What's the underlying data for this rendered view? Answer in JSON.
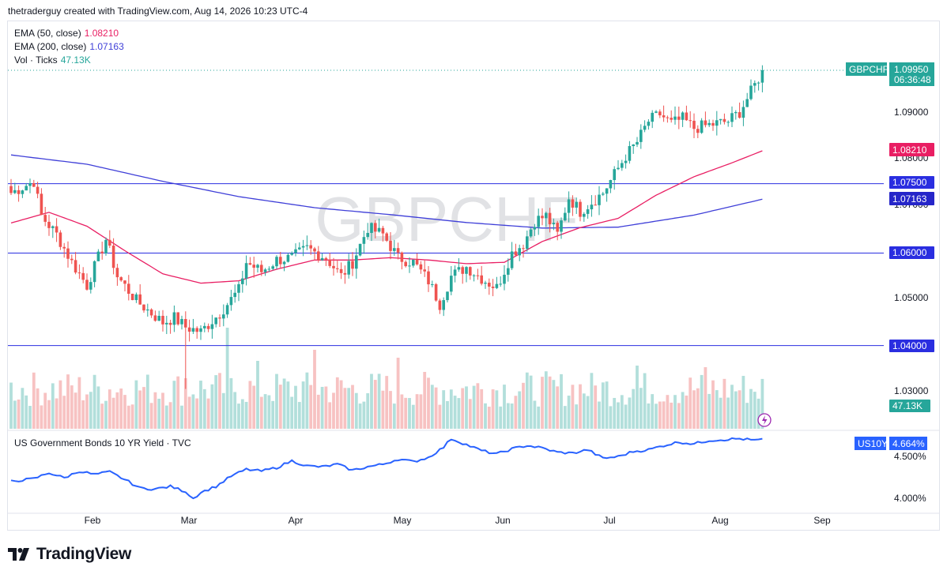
{
  "header": {
    "attribution": "thetraderguy created with TradingView.com, Aug 14, 2026 10:23 UTC-4"
  },
  "watermark": "GBPCHF",
  "legend": [
    {
      "name": "EMA (50, close)",
      "value": "1.08210",
      "color": "#e91e63"
    },
    {
      "name": "EMA (200, close)",
      "value": "1.07163",
      "color": "#3f3fd8"
    },
    {
      "name": "Vol · Ticks",
      "value": "47.13K",
      "color": "#26a69a"
    }
  ],
  "lower_pane": {
    "title": "US Government Bonds 10 YR Yield · TVC"
  },
  "footer": {
    "brand": "TradingView",
    "icon": "tradingview-logo-icon"
  },
  "colors": {
    "up": "#26a69a",
    "down": "#ef5350",
    "ema50": "#e91e63",
    "ema200": "#3f3fd8",
    "level": "#2a2ee0",
    "yield": "#2962ff",
    "vol_up": "#b2dfdb",
    "vol_down": "#f7c2c2"
  },
  "chart_data": [
    {
      "type": "candlestick",
      "title": "GBPCHF",
      "x_axis": {
        "ticks": [
          "Feb",
          "Mar",
          "Apr",
          "May",
          "Jun",
          "Jul",
          "Aug",
          "Sep"
        ]
      },
      "y_axis": {
        "ticks": [
          "1.09000",
          "1.08000",
          "1.07000",
          "1.06000",
          "1.05000",
          "1.03000"
        ],
        "range": [
          1.0268,
          1.1097
        ]
      },
      "price_tag": {
        "symbol": "GBPCHF",
        "value": "1.09950",
        "countdown": "06:36:48"
      },
      "level_tags": [
        "1.07500",
        "1.06000",
        "1.04000"
      ],
      "ema_tags": [
        "1.08210",
        "1.07163"
      ],
      "volume_tag": "47.13K",
      "levels": [
        1.075,
        1.06,
        1.04
      ],
      "anchors": [
        [
          0,
          1.073
        ],
        [
          6,
          1.0755
        ],
        [
          8,
          1.068
        ],
        [
          12,
          1.064
        ],
        [
          16,
          1.058
        ],
        [
          20,
          1.053
        ],
        [
          25,
          1.063
        ],
        [
          28,
          1.055
        ],
        [
          33,
          1.0497
        ],
        [
          37,
          1.047
        ],
        [
          40,
          1.045
        ],
        [
          43,
          1.046
        ],
        [
          46,
          1.044
        ],
        [
          50,
          1.043
        ],
        [
          55,
          1.047
        ],
        [
          60,
          1.052
        ],
        [
          62,
          1.058
        ],
        [
          66,
          1.056
        ],
        [
          70,
          1.0585
        ],
        [
          74,
          1.059
        ],
        [
          78,
          1.061
        ],
        [
          83,
          1.059
        ],
        [
          87,
          1.055
        ],
        [
          90,
          1.058
        ],
        [
          94,
          1.0655
        ],
        [
          98,
          1.064
        ],
        [
          102,
          1.059
        ],
        [
          106,
          1.058
        ],
        [
          110,
          1.054
        ],
        [
          113,
          1.049
        ],
        [
          116,
          1.055
        ],
        [
          120,
          1.057
        ],
        [
          125,
          1.054
        ],
        [
          128,
          1.0525
        ],
        [
          132,
          1.06
        ],
        [
          135,
          1.062
        ],
        [
          138,
          1.067
        ],
        [
          141,
          1.068
        ],
        [
          144,
          1.064
        ],
        [
          147,
          1.072
        ],
        [
          150,
          1.069
        ],
        [
          153,
          1.071
        ],
        [
          156,
          1.073
        ],
        [
          159,
          1.077
        ],
        [
          162,
          1.081
        ],
        [
          165,
          1.084
        ],
        [
          168,
          1.0885
        ],
        [
          171,
          1.09
        ],
        [
          174,
          1.088
        ],
        [
          177,
          1.089
        ],
        [
          180,
          1.087
        ],
        [
          183,
          1.0875
        ],
        [
          186,
          1.088
        ],
        [
          189,
          1.0885
        ],
        [
          192,
          1.0905
        ],
        [
          195,
          1.0948
        ],
        [
          197,
          1.0978
        ],
        [
          198,
          1.0995
        ]
      ],
      "ema50_anchors": [
        [
          0,
          1.0665
        ],
        [
          10,
          1.0688
        ],
        [
          20,
          1.0658
        ],
        [
          30,
          1.0605
        ],
        [
          40,
          1.0555
        ],
        [
          50,
          1.0535
        ],
        [
          60,
          1.054
        ],
        [
          70,
          1.0565
        ],
        [
          80,
          1.0585
        ],
        [
          90,
          1.0585
        ],
        [
          100,
          1.059
        ],
        [
          110,
          1.0585
        ],
        [
          120,
          1.0577
        ],
        [
          130,
          1.058
        ],
        [
          140,
          1.0625
        ],
        [
          150,
          1.0655
        ],
        [
          160,
          1.0675
        ],
        [
          170,
          1.0725
        ],
        [
          180,
          1.0765
        ],
        [
          190,
          1.0795
        ],
        [
          198,
          1.0821
        ]
      ],
      "ema200_anchors": [
        [
          0,
          1.0812
        ],
        [
          20,
          1.0792
        ],
        [
          40,
          1.0755
        ],
        [
          60,
          1.0722
        ],
        [
          80,
          1.0698
        ],
        [
          100,
          1.0683
        ],
        [
          120,
          1.0666
        ],
        [
          140,
          1.0654
        ],
        [
          160,
          1.0656
        ],
        [
          180,
          1.0682
        ],
        [
          198,
          1.07163
        ]
      ]
    },
    {
      "type": "line",
      "title": "US Government Bonds 10 YR Yield · TVC",
      "y_axis": {
        "ticks": [
          "4.500%",
          "4.000%"
        ]
      },
      "value_tag": {
        "symbol": "US10Y",
        "value": "4.664%"
      },
      "anchors": [
        [
          0,
          4.18
        ],
        [
          6,
          4.21
        ],
        [
          10,
          4.28
        ],
        [
          14,
          4.22
        ],
        [
          18,
          4.3
        ],
        [
          22,
          4.26
        ],
        [
          26,
          4.29
        ],
        [
          30,
          4.2
        ],
        [
          34,
          4.1
        ],
        [
          38,
          4.09
        ],
        [
          42,
          4.12
        ],
        [
          46,
          4.06
        ],
        [
          48,
          3.98
        ],
        [
          50,
          4.05
        ],
        [
          54,
          4.12
        ],
        [
          58,
          4.24
        ],
        [
          62,
          4.32
        ],
        [
          66,
          4.3
        ],
        [
          70,
          4.34
        ],
        [
          74,
          4.42
        ],
        [
          78,
          4.36
        ],
        [
          82,
          4.35
        ],
        [
          86,
          4.38
        ],
        [
          90,
          4.31
        ],
        [
          94,
          4.35
        ],
        [
          98,
          4.38
        ],
        [
          102,
          4.44
        ],
        [
          106,
          4.41
        ],
        [
          110,
          4.46
        ],
        [
          114,
          4.58
        ],
        [
          116,
          4.68
        ],
        [
          120,
          4.61
        ],
        [
          124,
          4.54
        ],
        [
          128,
          4.5
        ],
        [
          132,
          4.56
        ],
        [
          136,
          4.6
        ],
        [
          140,
          4.57
        ],
        [
          144,
          4.52
        ],
        [
          148,
          4.51
        ],
        [
          152,
          4.55
        ],
        [
          156,
          4.45
        ],
        [
          160,
          4.47
        ],
        [
          164,
          4.53
        ],
        [
          168,
          4.55
        ],
        [
          172,
          4.6
        ],
        [
          176,
          4.64
        ],
        [
          180,
          4.62
        ],
        [
          184,
          4.66
        ],
        [
          188,
          4.67
        ],
        [
          192,
          4.68
        ],
        [
          196,
          4.66
        ],
        [
          198,
          4.67
        ]
      ]
    }
  ]
}
